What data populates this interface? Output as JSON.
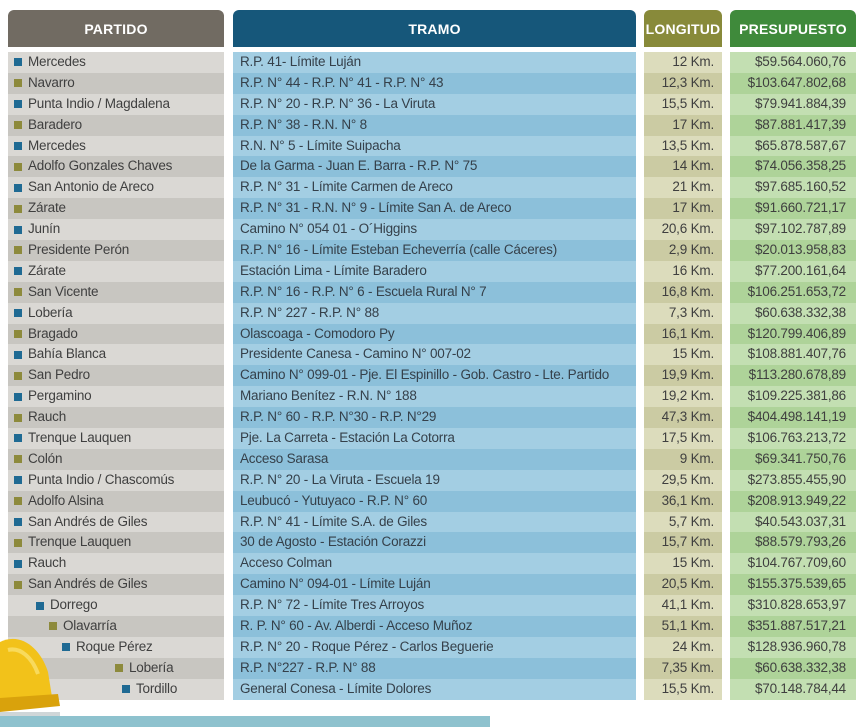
{
  "headers": {
    "partido": "PARTIDO",
    "tramo": "TRAMO",
    "longitud": "LONGITUD",
    "presupuesto": "PRESUPUESTO"
  },
  "colors": {
    "partido_header": "#716b62",
    "tramo_header": "#16577a",
    "longitud_header": "#888a3a",
    "presupuesto_header": "#3f8a3b",
    "bullet_blue": "#1f6a93",
    "bullet_olive": "#8d8a3c"
  },
  "rows": [
    {
      "partido": "Mercedes",
      "tramo": "R.P. 41- Límite Luján",
      "longitud": "12 Km.",
      "presupuesto": "$59.564.060,76",
      "bullet": "blue",
      "indent": 0
    },
    {
      "partido": "Navarro",
      "tramo": "R.P. N° 44 - R.P. N° 41 - R.P. N° 43",
      "longitud": "12,3 Km.",
      "presupuesto": "$103.647.802,68",
      "bullet": "olive",
      "indent": 0
    },
    {
      "partido": "Punta Indio / Magdalena",
      "tramo": "R.P. N° 20 - R.P. N° 36 - La Viruta",
      "longitud": "15,5 Km.",
      "presupuesto": "$79.941.884,39",
      "bullet": "blue",
      "indent": 0
    },
    {
      "partido": "Baradero",
      "tramo": "R.P. N° 38 - R.N. N° 8",
      "longitud": "17 Km.",
      "presupuesto": "$87.881.417,39",
      "bullet": "olive",
      "indent": 0
    },
    {
      "partido": "Mercedes",
      "tramo": "R.N. N° 5 - Límite Suipacha",
      "longitud": "13,5 Km.",
      "presupuesto": "$65.878.587,67",
      "bullet": "blue",
      "indent": 0
    },
    {
      "partido": "Adolfo Gonzales Chaves",
      "tramo": "De la Garma - Juan E. Barra - R.P. N° 75",
      "longitud": "14 Km.",
      "presupuesto": "$74.056.358,25",
      "bullet": "olive",
      "indent": 0
    },
    {
      "partido": "San Antonio de Areco",
      "tramo": "R.P. N° 31 - Límite Carmen de Areco",
      "longitud": "21 Km.",
      "presupuesto": "$97.685.160,52",
      "bullet": "blue",
      "indent": 0
    },
    {
      "partido": "Zárate",
      "tramo": "R.P. N° 31 - R.N. N° 9 - Límite San A. de Areco",
      "longitud": "17 Km.",
      "presupuesto": "$91.660.721,17",
      "bullet": "olive",
      "indent": 0
    },
    {
      "partido": "Junín",
      "tramo": "Camino N° 054 01 - O´Higgins",
      "longitud": "20,6 Km.",
      "presupuesto": "$97.102.787,89",
      "bullet": "blue",
      "indent": 0
    },
    {
      "partido": "Presidente Perón",
      "tramo": "R.P. N° 16 - Límite Esteban Echeverría (calle Cáceres)",
      "longitud": "2,9 Km.",
      "presupuesto": "$20.013.958,83",
      "bullet": "olive",
      "indent": 0
    },
    {
      "partido": "Zárate",
      "tramo": "Estación Lima - Límite Baradero",
      "longitud": "16 Km.",
      "presupuesto": "$77.200.161,64",
      "bullet": "blue",
      "indent": 0
    },
    {
      "partido": "San Vicente",
      "tramo": "R.P. N° 16 - R.P. N° 6 - Escuela Rural N° 7",
      "longitud": "16,8 Km.",
      "presupuesto": "$106.251.653,72",
      "bullet": "olive",
      "indent": 0
    },
    {
      "partido": "Lobería",
      "tramo": "R.P. N° 227 - R.P. N° 88",
      "longitud": "7,3 Km.",
      "presupuesto": "$60.638.332,38",
      "bullet": "blue",
      "indent": 0
    },
    {
      "partido": "Bragado",
      "tramo": "Olascoaga - Comodoro Py",
      "longitud": "16,1 Km.",
      "presupuesto": "$120.799.406,89",
      "bullet": "olive",
      "indent": 0
    },
    {
      "partido": "Bahía Blanca",
      "tramo": "Presidente Canesa - Camino N° 007-02",
      "longitud": "15 Km.",
      "presupuesto": "$108.881.407,76",
      "bullet": "blue",
      "indent": 0
    },
    {
      "partido": "San Pedro",
      "tramo": "Camino N° 099-01 - Pje. El Espinillo - Gob. Castro - Lte. Partido",
      "longitud": "19,9 Km.",
      "presupuesto": "$113.280.678,89",
      "bullet": "olive",
      "indent": 0
    },
    {
      "partido": "Pergamino",
      "tramo": "Mariano Benítez - R.N. N° 188",
      "longitud": "19,2 Km.",
      "presupuesto": "$109.225.381,86",
      "bullet": "blue",
      "indent": 0
    },
    {
      "partido": "Rauch",
      "tramo": "R.P. N° 60 - R.P. N°30 - R.P. N°29",
      "longitud": "47,3 Km.",
      "presupuesto": "$404.498.141,19",
      "bullet": "olive",
      "indent": 0
    },
    {
      "partido": "Trenque Lauquen",
      "tramo": "Pje. La Carreta - Estación La Cotorra",
      "longitud": "17,5 Km.",
      "presupuesto": "$106.763.213,72",
      "bullet": "blue",
      "indent": 0
    },
    {
      "partido": "Colón",
      "tramo": "Acceso Sarasa",
      "longitud": "9 Km.",
      "presupuesto": "$69.341.750,76",
      "bullet": "olive",
      "indent": 0
    },
    {
      "partido": "Punta Indio / Chascomús",
      "tramo": "R.P. N° 20 - La Viruta - Escuela 19",
      "longitud": "29,5 Km.",
      "presupuesto": "$273.855.455,90",
      "bullet": "blue",
      "indent": 0
    },
    {
      "partido": "Adolfo Alsina",
      "tramo": "Leubucó - Yutuyaco - R.P. N° 60",
      "longitud": "36,1 Km.",
      "presupuesto": "$208.913.949,22",
      "bullet": "olive",
      "indent": 0
    },
    {
      "partido": "San Andrés de Giles",
      "tramo": "R.P. N° 41 - Límite S.A. de Giles",
      "longitud": "5,7 Km.",
      "presupuesto": "$40.543.037,31",
      "bullet": "blue",
      "indent": 0
    },
    {
      "partido": "Trenque Lauquen",
      "tramo": "30 de Agosto - Estación Corazzi",
      "longitud": "15,7 Km.",
      "presupuesto": "$88.579.793,26",
      "bullet": "olive",
      "indent": 0
    },
    {
      "partido": "Rauch",
      "tramo": "Acceso Colman",
      "longitud": "15 Km.",
      "presupuesto": "$104.767.709,60",
      "bullet": "blue",
      "indent": 0
    },
    {
      "partido": "San Andrés de Giles",
      "tramo": "Camino N° 094-01 - Límite Luján",
      "longitud": "20,5 Km.",
      "presupuesto": "$155.375.539,65",
      "bullet": "olive",
      "indent": 0
    },
    {
      "partido": "Dorrego",
      "tramo": "R.P. N° 72 - Límite Tres Arroyos",
      "longitud": "41,1 Km.",
      "presupuesto": "$310.828.653,97",
      "bullet": "blue",
      "indent": 1
    },
    {
      "partido": "Olavarría",
      "tramo": "R. P. N° 60 - Av. Alberdi - Acceso Muñoz",
      "longitud": "51,1 Km.",
      "presupuesto": "$351.887.517,21",
      "bullet": "olive",
      "indent": 2
    },
    {
      "partido": "Roque Pérez",
      "tramo": "R.P. N° 20 - Roque Pérez - Carlos Beguerie",
      "longitud": "24 Km.",
      "presupuesto": "$128.936.960,78",
      "bullet": "blue",
      "indent": 3
    },
    {
      "partido": "Lobería",
      "tramo": "R.P. N°227 - R.P. N° 88",
      "longitud": "7,35 Km.",
      "presupuesto": "$60.638.332,38",
      "bullet": "olive",
      "indent": 4
    },
    {
      "partido": "Tordillo",
      "tramo": "General Conesa - Límite Dolores",
      "longitud": "15,5 Km.",
      "presupuesto": "$70.148.784,44",
      "bullet": "blue",
      "indent": 5
    }
  ]
}
